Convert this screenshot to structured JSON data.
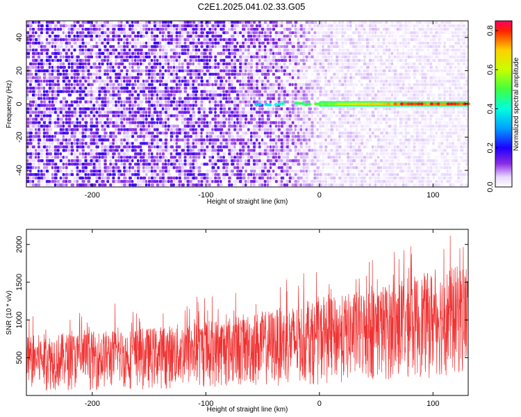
{
  "title": "C2E1.2025.041.02.33.G05",
  "chart_data": [
    {
      "type": "heatmap",
      "xlabel": "Height of straight line (km)",
      "ylabel": "Frequency (Hz)",
      "xlim": [
        -258,
        131
      ],
      "ylim": [
        -50,
        50
      ],
      "xticks": [
        -200,
        -100,
        0,
        100
      ],
      "yticks": [
        -40,
        -20,
        0,
        20,
        40
      ],
      "colorbar": {
        "label": "Normalized spectral amplitude",
        "range": [
          0,
          0.85
        ],
        "ticks": [
          0.0,
          0.2,
          0.4,
          0.6,
          0.8
        ],
        "tick_labels": [
          "0.0",
          "0.2",
          "0.4",
          "0.6",
          "0.8"
        ],
        "stops": [
          {
            "v": 0.0,
            "color": "#ffffff"
          },
          {
            "v": 0.05,
            "color": "#e9d8ff"
          },
          {
            "v": 0.12,
            "color": "#8a2be2"
          },
          {
            "v": 0.2,
            "color": "#1e00ff"
          },
          {
            "v": 0.3,
            "color": "#00a0ff"
          },
          {
            "v": 0.4,
            "color": "#00ffe0"
          },
          {
            "v": 0.5,
            "color": "#40ff40"
          },
          {
            "v": 0.6,
            "color": "#c8ff00"
          },
          {
            "v": 0.7,
            "color": "#ffd000"
          },
          {
            "v": 0.8,
            "color": "#ff2000"
          },
          {
            "v": 0.85,
            "color": "#ff0060"
          }
        ]
      },
      "signal_line": {
        "frequency": 0,
        "x_start": -70,
        "x_end": 131,
        "amplitude_start": 0.3,
        "amplitude_end": 0.8
      },
      "background_noise": [
        {
          "x": -258,
          "amplitude": 0.14
        },
        {
          "x": -100,
          "amplitude": 0.13
        },
        {
          "x": -30,
          "amplitude": 0.1
        },
        {
          "x": 0,
          "amplitude": 0.05
        },
        {
          "x": 131,
          "amplitude": 0.035
        }
      ]
    },
    {
      "type": "area",
      "xlabel": "Height of straight line (km)",
      "ylabel": "SNR (10 * v/v)",
      "xlim": [
        -258,
        131
      ],
      "ylim": [
        0,
        2200
      ],
      "xticks": [
        -200,
        -100,
        0,
        100
      ],
      "yticks": [
        500,
        1000,
        1500,
        2000
      ],
      "color": "#f03232",
      "series": [
        {
          "x": [
            -258,
            -200,
            -150,
            -100,
            -50,
            0,
            50,
            100,
            131
          ],
          "low": [
            60,
            70,
            80,
            90,
            110,
            140,
            180,
            220,
            260
          ],
          "high": [
            800,
            850,
            900,
            1000,
            1120,
            1250,
            1450,
            1650,
            1750
          ],
          "peak": [
            1050,
            1200,
            1300,
            1400,
            1550,
            1650,
            1850,
            2200,
            2200
          ]
        }
      ]
    }
  ]
}
